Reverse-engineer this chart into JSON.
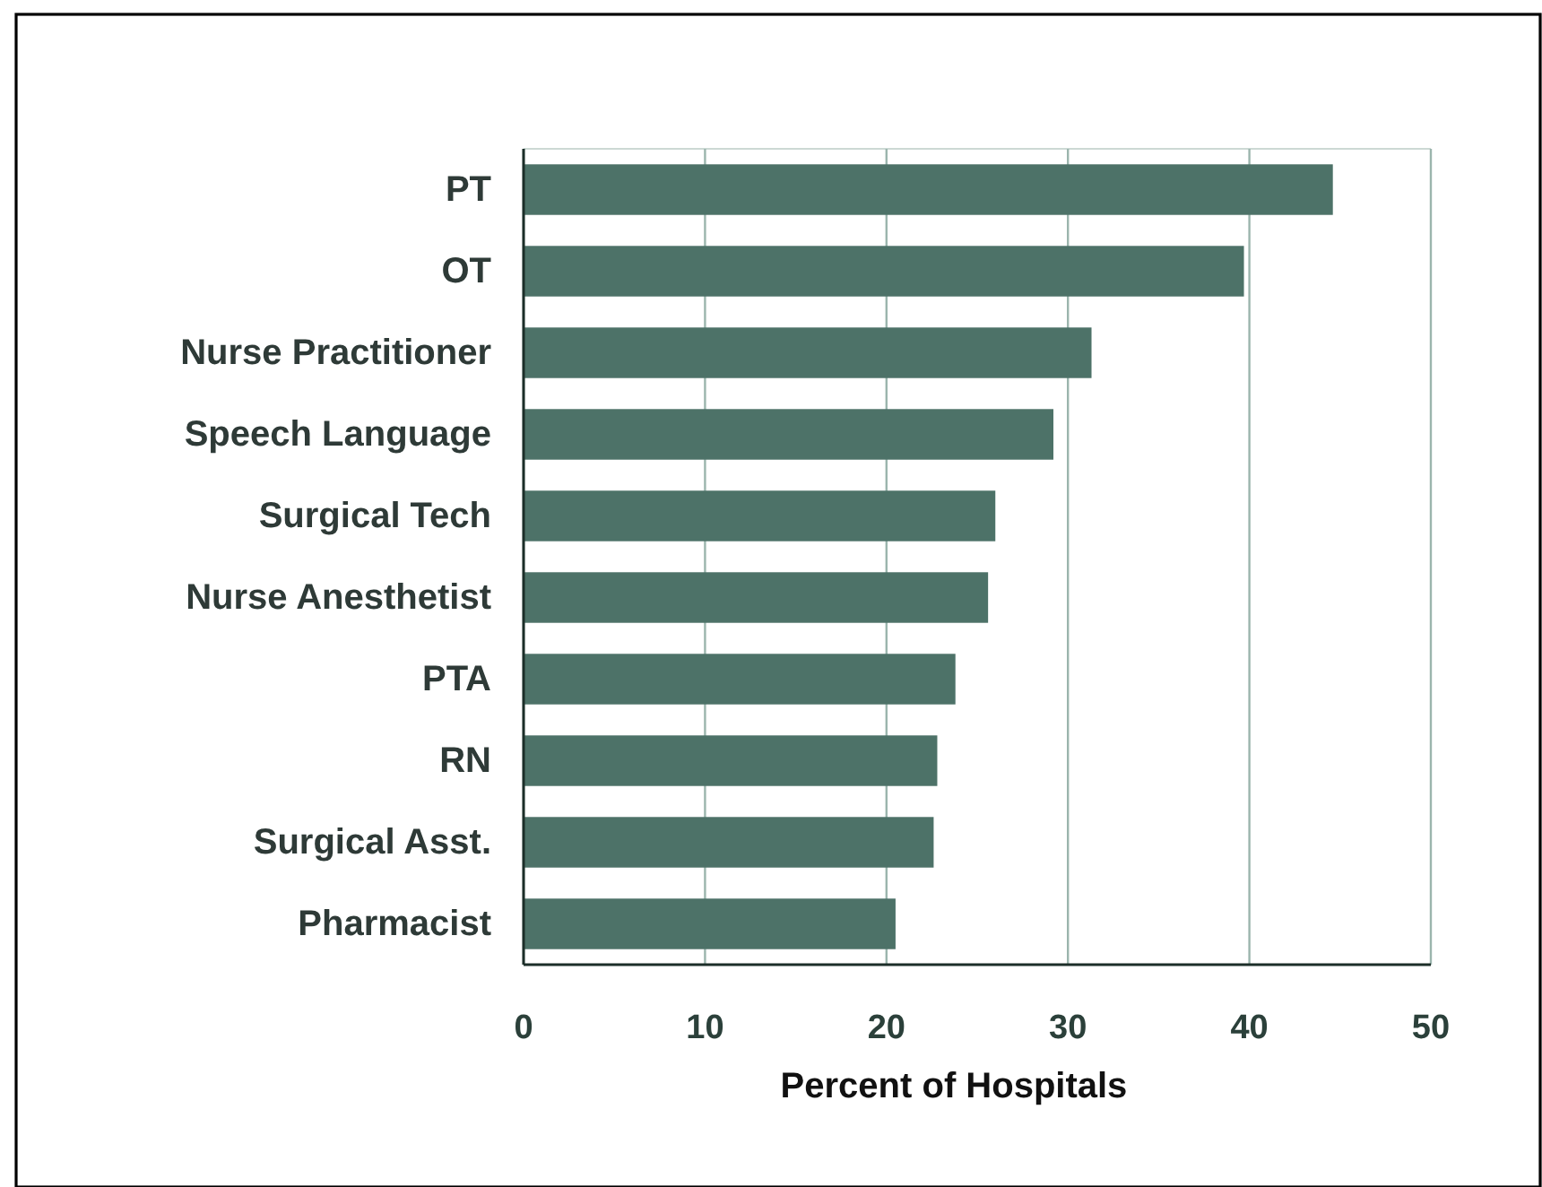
{
  "chart_data": {
    "type": "bar",
    "orientation": "horizontal",
    "xlabel": "Percent of Hospitals",
    "categories": [
      "PT",
      "OT",
      "Nurse Practitioner",
      "Speech Language",
      "Surgical Tech",
      "Nurse Anesthetist",
      "PTA",
      "RN",
      "Surgical Asst.",
      "Pharmacist"
    ],
    "values": [
      44.6,
      39.7,
      31.3,
      29.2,
      26.0,
      25.6,
      23.8,
      22.8,
      22.6,
      20.5
    ],
    "color": "#4d7268",
    "xlim": [
      0,
      50
    ],
    "xticks": [
      0,
      10,
      20,
      30,
      40,
      50
    ],
    "grid": "x"
  }
}
